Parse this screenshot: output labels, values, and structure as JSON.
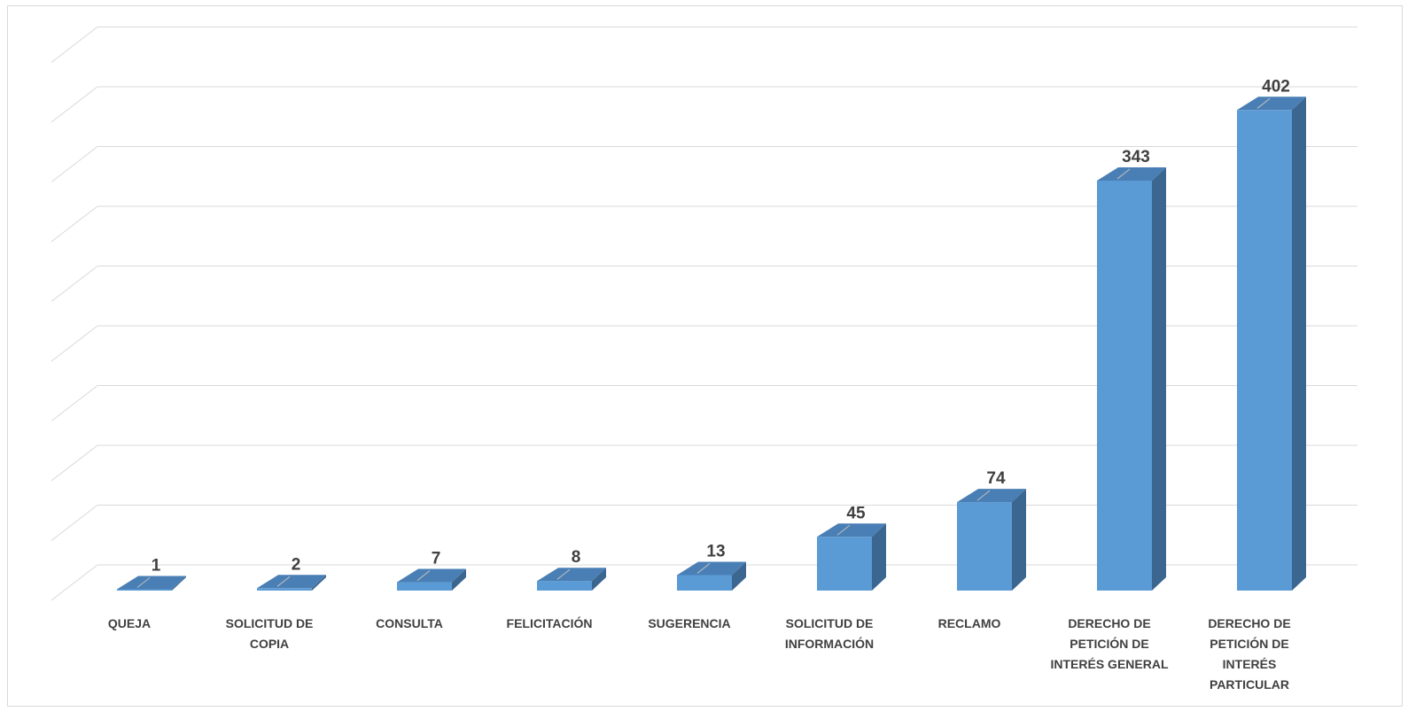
{
  "chart_data": {
    "type": "bar",
    "title": "",
    "xlabel": "",
    "ylabel": "",
    "ylim": [
      0,
      450
    ],
    "grid": true,
    "legend": "none",
    "categories": [
      [
        "QUEJA"
      ],
      [
        "SOLICITUD DE",
        "COPIA"
      ],
      [
        "CONSULTA"
      ],
      [
        "FELICITACIÓN"
      ],
      [
        "SUGERENCIA"
      ],
      [
        "SOLICITUD DE",
        "INFORMACIÓN"
      ],
      [
        "RECLAMO"
      ],
      [
        "DERECHO DE",
        "PETICIÓN DE",
        "INTERÉS GENERAL"
      ],
      [
        "DERECHO DE",
        "PETICIÓN DE",
        "INTERÉS",
        "PARTICULAR"
      ]
    ],
    "values": [
      1,
      2,
      7,
      8,
      13,
      45,
      74,
      343,
      402
    ],
    "colors": {
      "front": "#5b9bd5",
      "side": "#3a6690",
      "top": "#4a7fb5",
      "grid": "#d9d9d9",
      "text": "#404040"
    }
  }
}
